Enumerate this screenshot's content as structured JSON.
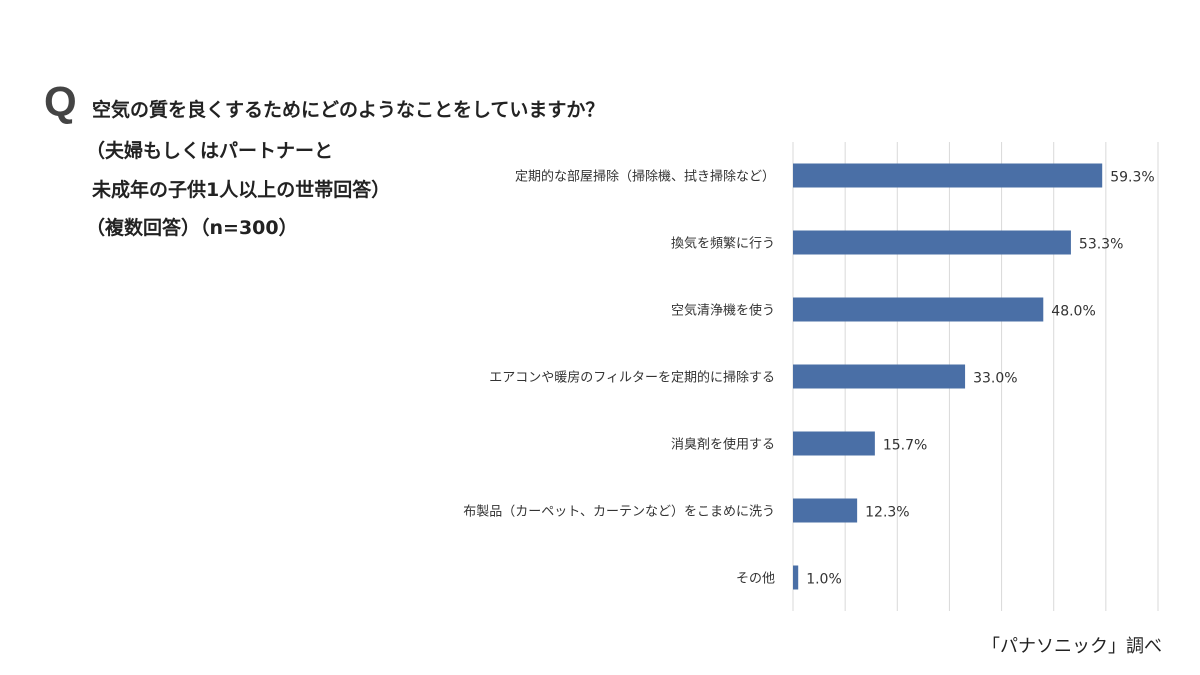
{
  "title": {
    "q_mark": "Q",
    "lines": [
      "空気の質を良くするためにどのようなことをしていますか？",
      "（夫婦もしくはパートナーと",
      "未成年の子供1人以上の世帯回答）",
      "（複数回答）（n=300）"
    ]
  },
  "source": "「パナソニック」調べ",
  "colors": {
    "bar": "#4a6fa6",
    "grid": "#d9d9d9"
  },
  "chart_data": {
    "type": "bar",
    "orientation": "horizontal",
    "categories": [
      "定期的な部屋掃除（掃除機、拭き掃除など）",
      "換気を頻繁に行う",
      "空気清浄機を使う",
      "エアコンや暖房のフィルターを定期的に掃除する",
      "消臭剤を使用する",
      "布製品（カーペット、カーテンなど）をこまめに洗う",
      "その他"
    ],
    "values": [
      59.3,
      53.3,
      48.0,
      33.0,
      15.7,
      12.3,
      1.0
    ],
    "value_labels": [
      "59.3%",
      "53.3%",
      "48.0%",
      "33.0%",
      "15.7%",
      "12.3%",
      "1.0%"
    ],
    "xlim": [
      0,
      70
    ],
    "grid_step": 10,
    "grid": true,
    "unit": "%"
  }
}
